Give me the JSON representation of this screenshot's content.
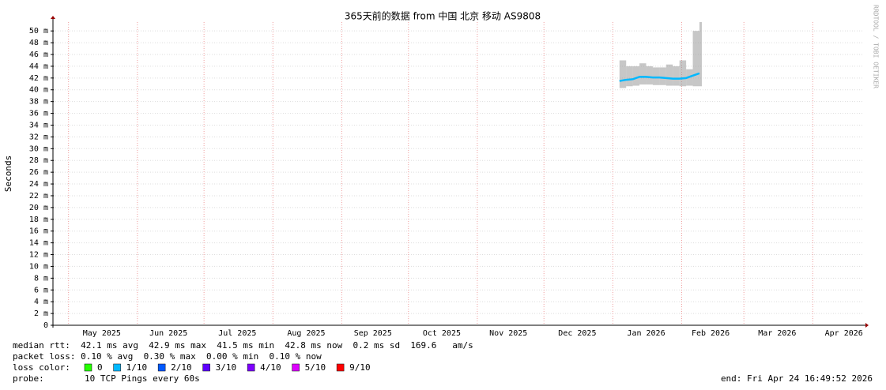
{
  "chart_data": {
    "type": "line",
    "title": "365天前的数据 from  中国 北京 移动 AS9808",
    "y_label": "Seconds",
    "watermark": "RRDTOOL / TOBI OETIKER",
    "x": [
      "2026-01-04",
      "2026-01-07",
      "2026-01-10",
      "2026-01-13",
      "2026-01-16",
      "2026-01-19",
      "2026-01-22",
      "2026-01-25",
      "2026-01-28",
      "2026-01-31",
      "2026-02-03",
      "2026-02-06",
      "2026-02-09"
    ],
    "series": [
      {
        "name": "median rtt",
        "color": "#00b8ff",
        "values": [
          41.5,
          41.7,
          41.8,
          42.2,
          42.2,
          42.1,
          42.1,
          42.0,
          41.9,
          41.9,
          42.0,
          42.4,
          42.8
        ]
      }
    ],
    "smoke": {
      "color": "#999999",
      "low": [
        40.3,
        40.6,
        40.7,
        40.9,
        40.9,
        40.8,
        40.8,
        40.7,
        40.7,
        40.6,
        40.7,
        40.6,
        40.6
      ],
      "high": [
        45.0,
        44.0,
        44.0,
        44.5,
        44.0,
        43.8,
        43.8,
        44.3,
        44.0,
        45.0,
        43.5,
        50.0,
        51.5
      ]
    },
    "xlim": [
      "2025-04-24",
      "2026-04-24"
    ],
    "xticks": [
      {
        "value": "2025-05-16",
        "label": "May 2025"
      },
      {
        "value": "2025-06-15",
        "label": "Jun 2025"
      },
      {
        "value": "2025-07-16",
        "label": "Jul 2025"
      },
      {
        "value": "2025-08-16",
        "label": "Aug 2025"
      },
      {
        "value": "2025-09-15",
        "label": "Sep 2025"
      },
      {
        "value": "2025-10-16",
        "label": "Oct 2025"
      },
      {
        "value": "2025-11-15",
        "label": "Nov 2025"
      },
      {
        "value": "2025-12-16",
        "label": "Dec 2025"
      },
      {
        "value": "2026-01-16",
        "label": "Jan 2026"
      },
      {
        "value": "2026-02-14",
        "label": "Feb 2026"
      },
      {
        "value": "2026-03-16",
        "label": "Mar 2026"
      },
      {
        "value": "2026-04-15",
        "label": "Apr 2026"
      }
    ],
    "ylim": [
      0,
      51.5
    ],
    "yticks": [
      0,
      {
        "value": 2,
        "label": "2 m"
      },
      {
        "value": 4,
        "label": "4 m"
      },
      {
        "value": 6,
        "label": "6 m"
      },
      {
        "value": 8,
        "label": "8 m"
      },
      {
        "value": 10,
        "label": "10 m"
      },
      {
        "value": 12,
        "label": "12 m"
      },
      {
        "value": 14,
        "label": "14 m"
      },
      {
        "value": 16,
        "label": "16 m"
      },
      {
        "value": 18,
        "label": "18 m"
      },
      {
        "value": 20,
        "label": "20 m"
      },
      {
        "value": 22,
        "label": "22 m"
      },
      {
        "value": 24,
        "label": "24 m"
      },
      {
        "value": 26,
        "label": "26 m"
      },
      {
        "value": 28,
        "label": "28 m"
      },
      {
        "value": 30,
        "label": "30 m"
      },
      {
        "value": 32,
        "label": "32 m"
      },
      {
        "value": 34,
        "label": "34 m"
      },
      {
        "value": 36,
        "label": "36 m"
      },
      {
        "value": 38,
        "label": "38 m"
      },
      {
        "value": 40,
        "label": "40 m"
      },
      {
        "value": 42,
        "label": "42 m"
      },
      {
        "value": 44,
        "label": "44 m"
      },
      {
        "value": 46,
        "label": "46 m"
      },
      {
        "value": 48,
        "label": "48 m"
      },
      {
        "value": 50,
        "label": "50 m"
      }
    ],
    "grid": true,
    "legend": {
      "median_line": "median rtt:  42.1 ms avg  42.9 ms max  41.5 ms min  42.8 ms now  0.2 ms sd  169.6   am/s",
      "loss_line": "packet loss: 0.10 % avg  0.30 % max  0.00 % min  0.10 % now",
      "loss_title": "loss color:",
      "loss_colors": [
        {
          "label": "0",
          "color": "#26ff00"
        },
        {
          "label": "1/10",
          "color": "#00b8ff"
        },
        {
          "label": "2/10",
          "color": "#0059ff"
        },
        {
          "label": "3/10",
          "color": "#5e00ff"
        },
        {
          "label": "4/10",
          "color": "#7e00ff"
        },
        {
          "label": "5/10",
          "color": "#dd00ff"
        },
        {
          "label": "9/10",
          "color": "#ff0000"
        }
      ],
      "probe_title": "probe:",
      "probe": "10 TCP Pings every 60s",
      "end": "end: Fri Apr 24 16:49:52 2026"
    }
  }
}
